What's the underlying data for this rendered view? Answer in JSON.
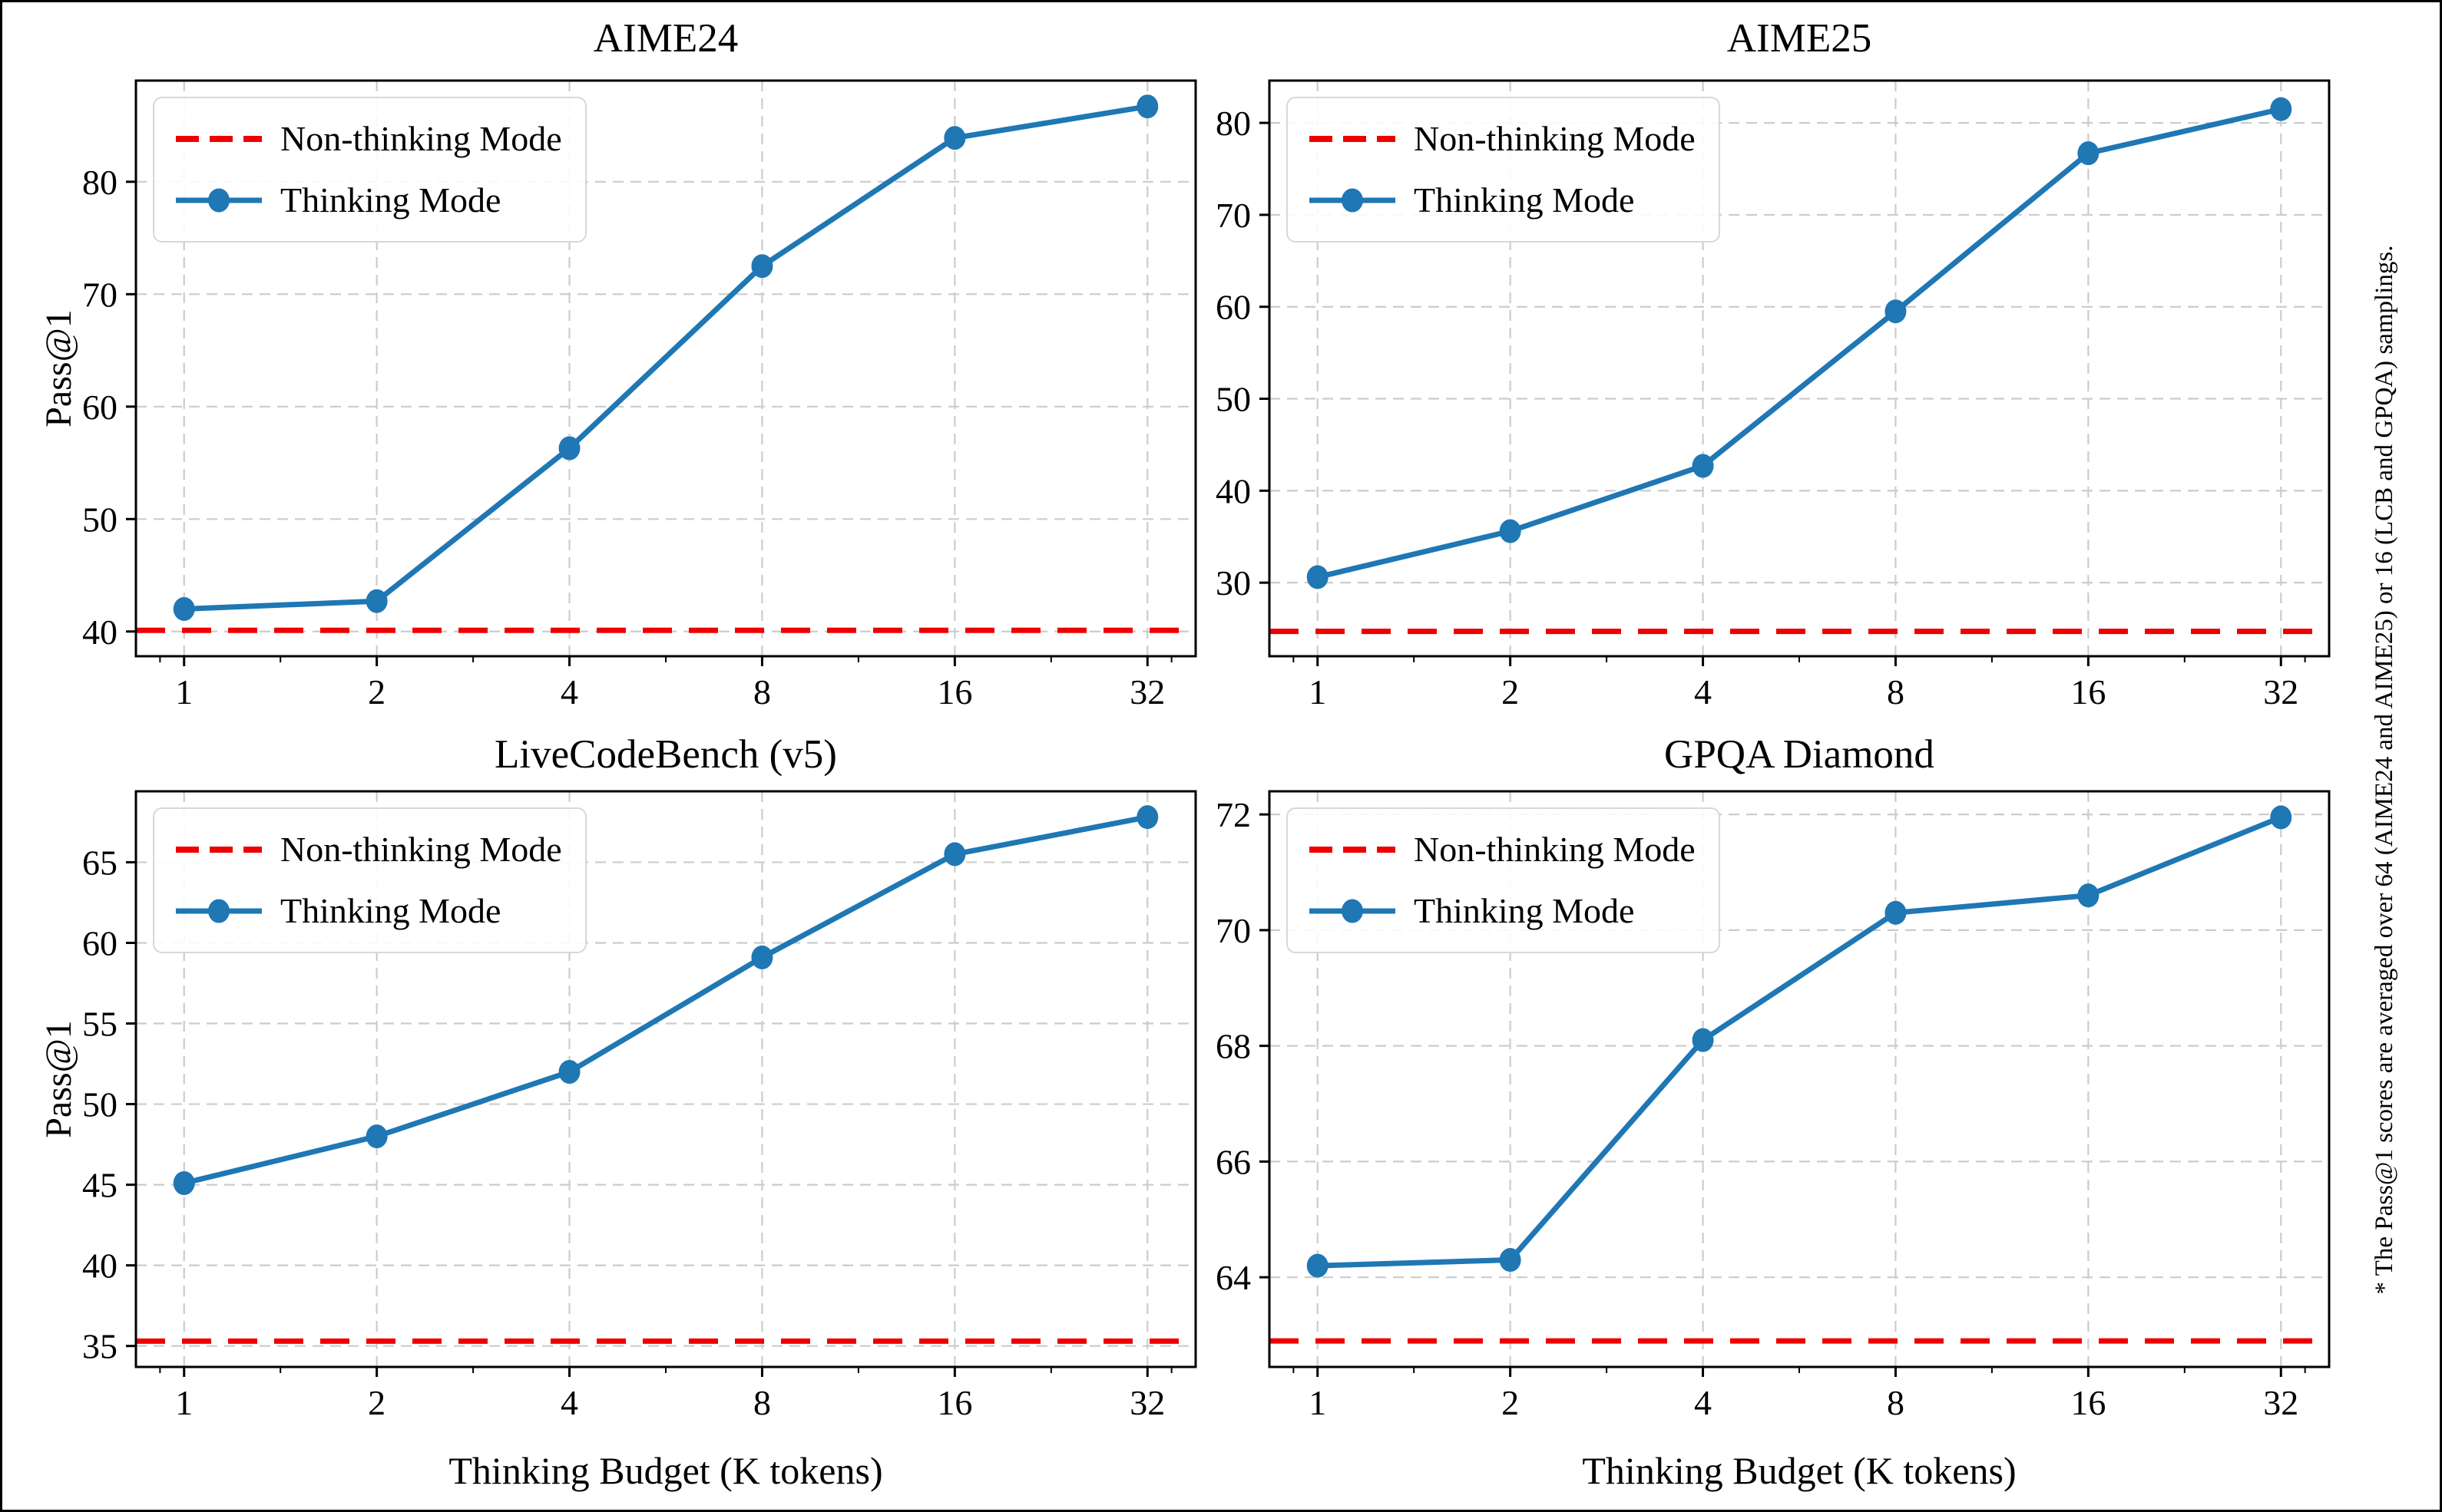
{
  "figure": {
    "ylabel": "Pass@1",
    "xlabel": "Thinking Budget (K tokens)",
    "footnote": "* The Pass@1 scores are averaged over 64 (AIME24 and AIME25) or 16 (LCB and GPQA) samplings."
  },
  "legend": {
    "nonthinking": "Non-thinking Mode",
    "thinking": "Thinking Mode"
  },
  "colors": {
    "thinking_line": "#1f77b4",
    "nonthinking_line": "#ee0000",
    "grid": "#cccccc"
  },
  "axes": {
    "x_scale": "log2",
    "xticks": [
      1,
      2,
      4,
      8,
      16,
      32
    ],
    "xlim_log2": [
      -0.25,
      5.25
    ],
    "grid": "dashed"
  },
  "chart_data": [
    {
      "type": "line",
      "title": "AIME24",
      "x": [
        1,
        2,
        4,
        8,
        16,
        32
      ],
      "ylim": [
        37.8,
        89.0
      ],
      "yticks": [
        40,
        50,
        60,
        70,
        80
      ],
      "series": [
        {
          "name": "Non-thinking Mode",
          "style": "dashed-horizontal",
          "value": 40.1
        },
        {
          "name": "Thinking Mode",
          "style": "line-markers",
          "values": [
            42.0,
            42.7,
            56.3,
            72.5,
            83.9,
            86.7
          ]
        }
      ]
    },
    {
      "type": "line",
      "title": "AIME25",
      "x": [
        1,
        2,
        4,
        8,
        16,
        32
      ],
      "ylim": [
        22.0,
        84.6
      ],
      "yticks": [
        30,
        40,
        50,
        60,
        70,
        80
      ],
      "series": [
        {
          "name": "Non-thinking Mode",
          "style": "dashed-horizontal",
          "value": 24.7
        },
        {
          "name": "Thinking Mode",
          "style": "line-markers",
          "values": [
            30.6,
            35.6,
            42.7,
            59.5,
            76.7,
            81.5
          ]
        }
      ]
    },
    {
      "type": "line",
      "title": "LiveCodeBench (v5)",
      "x": [
        1,
        2,
        4,
        8,
        16,
        32
      ],
      "ylim": [
        33.7,
        69.4
      ],
      "yticks": [
        35,
        40,
        45,
        50,
        55,
        60,
        65
      ],
      "series": [
        {
          "name": "Non-thinking Mode",
          "style": "dashed-horizontal",
          "value": 35.3
        },
        {
          "name": "Thinking Mode",
          "style": "line-markers",
          "values": [
            45.1,
            48.0,
            52.0,
            59.1,
            65.5,
            67.8
          ]
        }
      ]
    },
    {
      "type": "line",
      "title": "GPQA Diamond",
      "x": [
        1,
        2,
        4,
        8,
        16,
        32
      ],
      "ylim": [
        62.45,
        72.4
      ],
      "yticks": [
        64,
        66,
        68,
        70,
        72
      ],
      "series": [
        {
          "name": "Non-thinking Mode",
          "style": "dashed-horizontal",
          "value": 62.9
        },
        {
          "name": "Thinking Mode",
          "style": "line-markers",
          "values": [
            64.2,
            64.3,
            68.1,
            70.3,
            70.6,
            71.95
          ]
        }
      ]
    }
  ]
}
